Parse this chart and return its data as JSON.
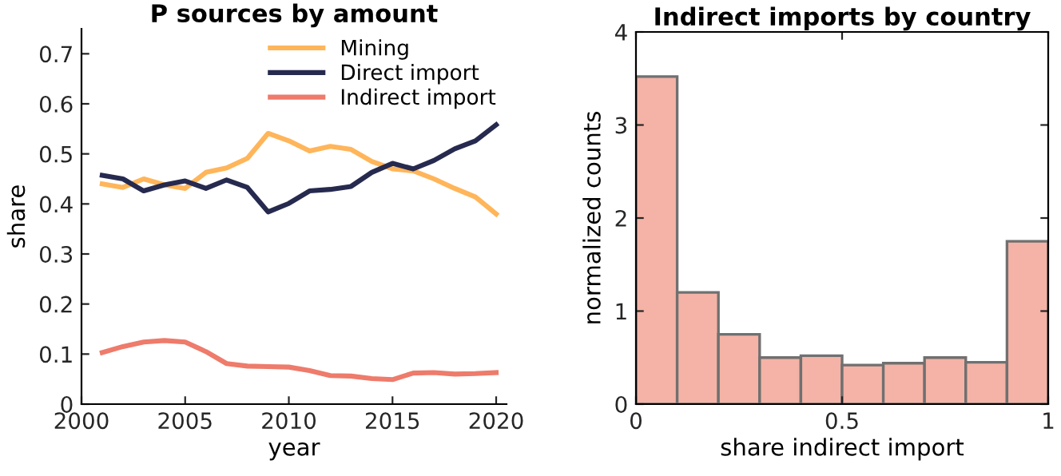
{
  "chart_data": [
    {
      "type": "line",
      "title": "P sources by amount",
      "xlabel": "year",
      "ylabel": "share",
      "x": [
        2001,
        2002,
        2003,
        2004,
        2005,
        2006,
        2007,
        2008,
        2009,
        2010,
        2011,
        2012,
        2013,
        2014,
        2015,
        2016,
        2017,
        2018,
        2019,
        2020
      ],
      "series": [
        {
          "name": "Mining",
          "color": "#ffb55a",
          "values": [
            0.44,
            0.433,
            0.45,
            0.438,
            0.431,
            0.463,
            0.472,
            0.491,
            0.541,
            0.526,
            0.506,
            0.515,
            0.509,
            0.485,
            0.47,
            0.466,
            0.45,
            0.431,
            0.414,
            0.38
          ]
        },
        {
          "name": "Direct import",
          "color": "#262a4f",
          "values": [
            0.457,
            0.45,
            0.426,
            0.438,
            0.446,
            0.431,
            0.448,
            0.433,
            0.384,
            0.401,
            0.426,
            0.429,
            0.435,
            0.463,
            0.481,
            0.47,
            0.487,
            0.51,
            0.526,
            0.558
          ]
        },
        {
          "name": "Indirect import",
          "color": "#ee7b6b",
          "values": [
            0.103,
            0.115,
            0.124,
            0.127,
            0.124,
            0.105,
            0.081,
            0.076,
            0.075,
            0.074,
            0.067,
            0.057,
            0.056,
            0.051,
            0.049,
            0.062,
            0.063,
            0.06,
            0.061,
            0.063
          ]
        }
      ],
      "xlim": [
        2000,
        2020.5
      ],
      "xticks": [
        2000,
        2005,
        2010,
        2015,
        2020
      ],
      "ylim": [
        0,
        0.75
      ],
      "yticks": [
        0,
        0.1,
        0.2,
        0.3,
        0.4,
        0.5,
        0.6,
        0.7
      ],
      "legend": "top right",
      "grid": false
    },
    {
      "type": "histogram",
      "title": "Indirect imports by country",
      "xlabel": "share indirect import",
      "ylabel": "normalized counts",
      "color": "#f4b3a6",
      "bins": [
        0,
        0.1,
        0.2,
        0.3,
        0.4,
        0.5,
        0.6,
        0.7,
        0.8,
        0.9,
        1.0
      ],
      "values": [
        3.52,
        1.2,
        0.75,
        0.5,
        0.52,
        0.42,
        0.44,
        0.5,
        0.45,
        1.75
      ],
      "xlim": [
        0,
        1
      ],
      "xticks": [
        0,
        0.5,
        1
      ],
      "ylim": [
        0,
        4
      ],
      "yticks": [
        0,
        1,
        2,
        3,
        4
      ],
      "grid": false
    }
  ]
}
